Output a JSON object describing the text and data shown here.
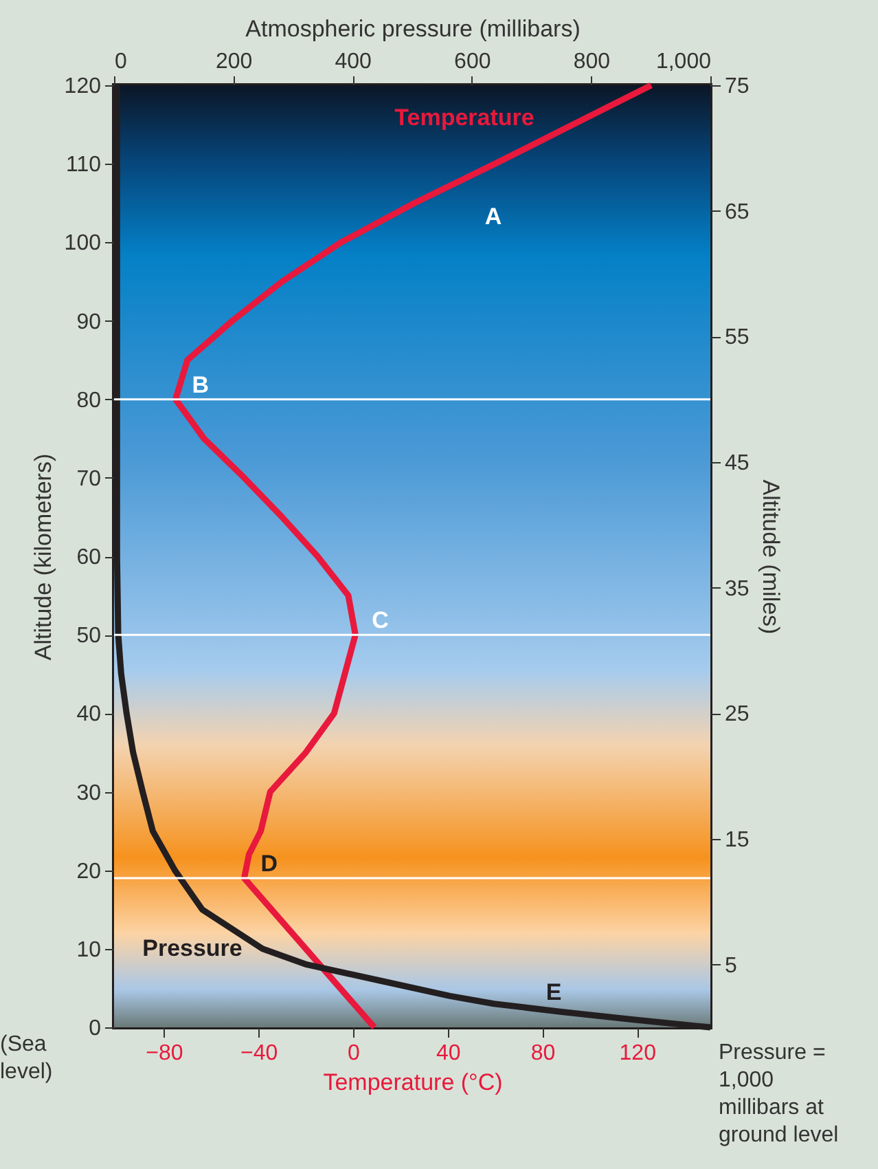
{
  "chart_data": {
    "type": "line",
    "orientation": "horizontal",
    "xlabel": "Temperature (°C)",
    "x2label": "Atmospheric pressure (millibars)",
    "ylabel": "Altitude (kilometers)",
    "y2label": "Altitude (miles)",
    "xlim": [
      -101,
      151
    ],
    "xticks": [
      {
        "value": -80,
        "label": "−80"
      },
      {
        "value": -40,
        "label": "−40"
      },
      0,
      40,
      80,
      120
    ],
    "x2lim": [
      0,
      1000
    ],
    "x2ticks": [
      0,
      200,
      400,
      600,
      800,
      {
        "value": 1000,
        "label": "1,000"
      }
    ],
    "ylim": [
      0,
      120
    ],
    "yticks": [
      0,
      10,
      20,
      30,
      40,
      50,
      60,
      70,
      80,
      90,
      100,
      110,
      120
    ],
    "y2lim": [
      0,
      75
    ],
    "y2ticks": [
      5,
      15,
      25,
      35,
      45,
      55,
      65,
      75
    ],
    "series": [
      {
        "name": "Temperature",
        "color": "#e8193c",
        "x": [
          0,
          19,
          22,
          25,
          30,
          35,
          40,
          45,
          50,
          55,
          60,
          65,
          70,
          75,
          80,
          85,
          90,
          95,
          100,
          105,
          110,
          115,
          120
        ],
        "values": [
          9,
          -46,
          -44,
          -39,
          -35,
          -20,
          -8,
          -3.5,
          1,
          -2,
          -15,
          -30,
          -46,
          -63,
          -75,
          -70,
          -51,
          -30,
          -5,
          26,
          60,
          93,
          126
        ]
      },
      {
        "name": "Pressure",
        "color": "#231f20",
        "axis": "x2",
        "x": [
          0,
          1,
          2,
          3,
          4,
          6,
          8,
          10,
          15,
          20,
          25,
          30,
          35,
          40,
          45,
          50,
          60,
          80,
          120
        ],
        "values": [
          1000,
          868,
          748,
          637,
          563,
          443,
          323,
          249,
          148,
          102,
          65,
          48,
          32,
          21,
          12,
          7,
          5,
          5,
          5
        ]
      }
    ],
    "ref_lines": [
      {
        "axis": "y",
        "value": 80,
        "color": "#ffffff"
      },
      {
        "axis": "y",
        "value": 50,
        "color": "#ffffff"
      },
      {
        "axis": "y",
        "value": 19,
        "color": "#ffffff"
      }
    ],
    "annotations": [
      "A",
      {
        "text": "B",
        "x": -75,
        "y": 80
      },
      {
        "text": "C",
        "x": 1,
        "y": 50
      },
      {
        "text": "D",
        "x": -46,
        "y": 19
      },
      "E",
      "(Sea level)",
      "Pressure = 1,000 millibars at ground level"
    ],
    "grid": false,
    "marker": "none",
    "line_style": "solid"
  }
}
